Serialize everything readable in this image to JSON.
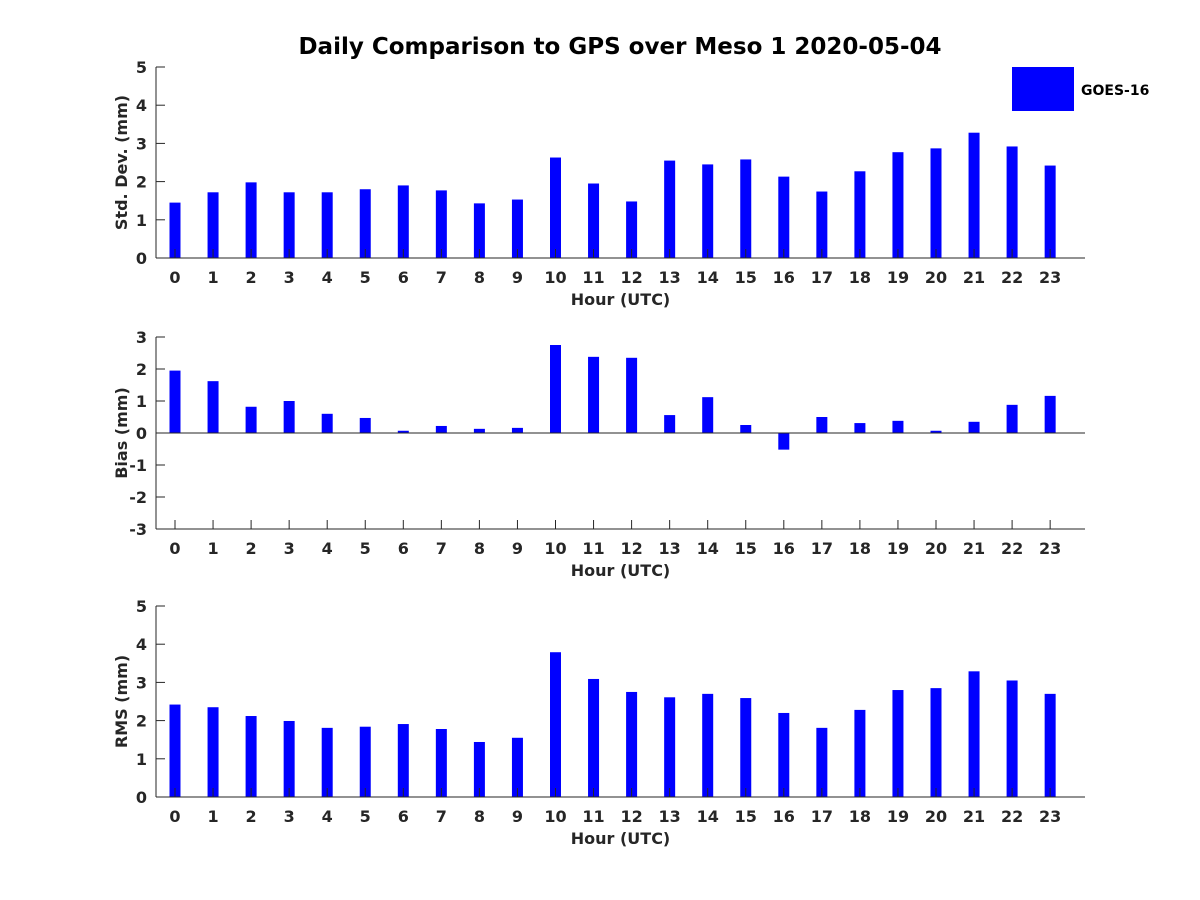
{
  "figure_title": "Daily Comparison to GPS over Meso 1 2020-05-04",
  "legend": {
    "label": "GOES-16",
    "color": "#0000ff",
    "placement": "top-right"
  },
  "chart_data": [
    {
      "type": "bar",
      "title": "Daily Comparison to GPS over Meso 1 2020-05-04",
      "xlabel": "Hour (UTC)",
      "ylabel": "Std. Dev. (mm)",
      "ylim": [
        0,
        5
      ],
      "yticks": [
        "0",
        "1",
        "2",
        "3",
        "4",
        "5"
      ],
      "categories": [
        "0",
        "1",
        "2",
        "3",
        "4",
        "5",
        "6",
        "7",
        "8",
        "9",
        "10",
        "11",
        "12",
        "13",
        "14",
        "15",
        "16",
        "17",
        "18",
        "19",
        "20",
        "21",
        "22",
        "23"
      ],
      "series": [
        {
          "name": "GOES-16",
          "color": "#0000ff",
          "values": [
            1.45,
            1.72,
            1.98,
            1.72,
            1.72,
            1.8,
            1.9,
            1.77,
            1.43,
            1.53,
            2.63,
            1.95,
            1.48,
            2.55,
            2.45,
            2.58,
            2.13,
            1.74,
            2.27,
            2.77,
            2.87,
            3.28,
            2.92,
            2.42
          ]
        }
      ]
    },
    {
      "type": "bar",
      "title": "",
      "xlabel": "Hour (UTC)",
      "ylabel": "Bias (mm)",
      "ylim": [
        -3,
        3
      ],
      "yticks": [
        "-3",
        "-2",
        "-1",
        "0",
        "1",
        "2",
        "3"
      ],
      "categories": [
        "0",
        "1",
        "2",
        "3",
        "4",
        "5",
        "6",
        "7",
        "8",
        "9",
        "10",
        "11",
        "12",
        "13",
        "14",
        "15",
        "16",
        "17",
        "18",
        "19",
        "20",
        "21",
        "22",
        "23"
      ],
      "series": [
        {
          "name": "GOES-16",
          "color": "#0000ff",
          "values": [
            1.95,
            1.62,
            0.82,
            1.0,
            0.6,
            0.47,
            0.07,
            0.22,
            0.13,
            0.16,
            2.75,
            2.38,
            2.35,
            0.56,
            1.12,
            0.25,
            -0.52,
            0.5,
            0.31,
            0.38,
            0.07,
            0.35,
            0.88,
            1.16
          ]
        }
      ]
    },
    {
      "type": "bar",
      "title": "",
      "xlabel": "Hour (UTC)",
      "ylabel": "RMS (mm)",
      "ylim": [
        0,
        5
      ],
      "yticks": [
        "0",
        "1",
        "2",
        "3",
        "4",
        "5"
      ],
      "categories": [
        "0",
        "1",
        "2",
        "3",
        "4",
        "5",
        "6",
        "7",
        "8",
        "9",
        "10",
        "11",
        "12",
        "13",
        "14",
        "15",
        "16",
        "17",
        "18",
        "19",
        "20",
        "21",
        "22",
        "23"
      ],
      "series": [
        {
          "name": "GOES-16",
          "color": "#0000ff",
          "values": [
            2.42,
            2.35,
            2.12,
            1.99,
            1.81,
            1.84,
            1.91,
            1.78,
            1.44,
            1.55,
            3.79,
            3.09,
            2.75,
            2.61,
            2.7,
            2.59,
            2.2,
            1.81,
            2.28,
            2.8,
            2.85,
            3.29,
            3.05,
            2.7
          ]
        }
      ]
    }
  ]
}
